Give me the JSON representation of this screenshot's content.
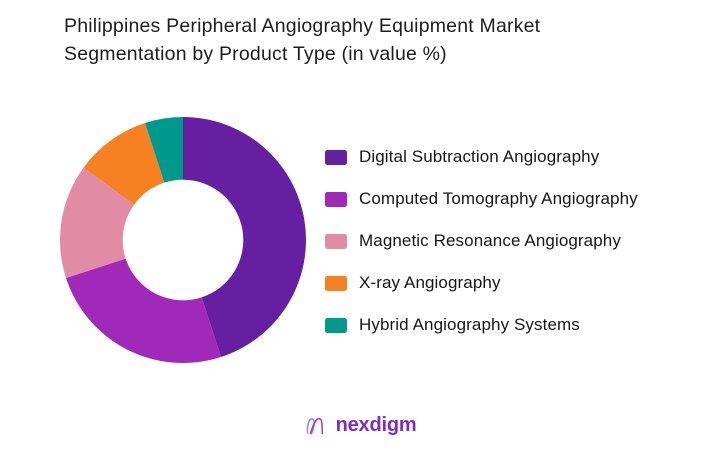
{
  "title_lines": [
    "Philippines Peripheral Angiography Equipment Market",
    "Segmentation by Product Type (in value %)"
  ],
  "chart_data": {
    "type": "pie",
    "subtype": "donut",
    "title": "Philippines Peripheral Angiography Equipment Market Segmentation by Product Type (in value %)",
    "unit": "value %",
    "start_angle_deg": 0,
    "direction": "clockwise",
    "hole_ratio": 0.49,
    "legend_position": "right",
    "data_labels_shown": false,
    "segments": [
      {
        "label": "Digital Subtraction Angiography",
        "value": 45,
        "color": "#671FA1"
      },
      {
        "label": "Computed Tomography Angiography",
        "value": 25,
        "color": "#A129B9"
      },
      {
        "label": "Magnetic Resonance Angiography",
        "value": 15,
        "color": "#E18CA4"
      },
      {
        "label": "X-ray Angiography",
        "value": 10,
        "color": "#F58122"
      },
      {
        "label": "Hybrid Angiography Systems",
        "value": 5,
        "color": "#00998B"
      }
    ]
  },
  "footer": {
    "brand": "nexdigm",
    "logo_icon": "nexdigm-n-mark",
    "brand_color": "#7F2BBE",
    "mark_colors": {
      "left_stroke": "#8F7FE4",
      "right_stroke": "#A22BD6"
    }
  },
  "page": {
    "background": "#FFFFFF"
  }
}
